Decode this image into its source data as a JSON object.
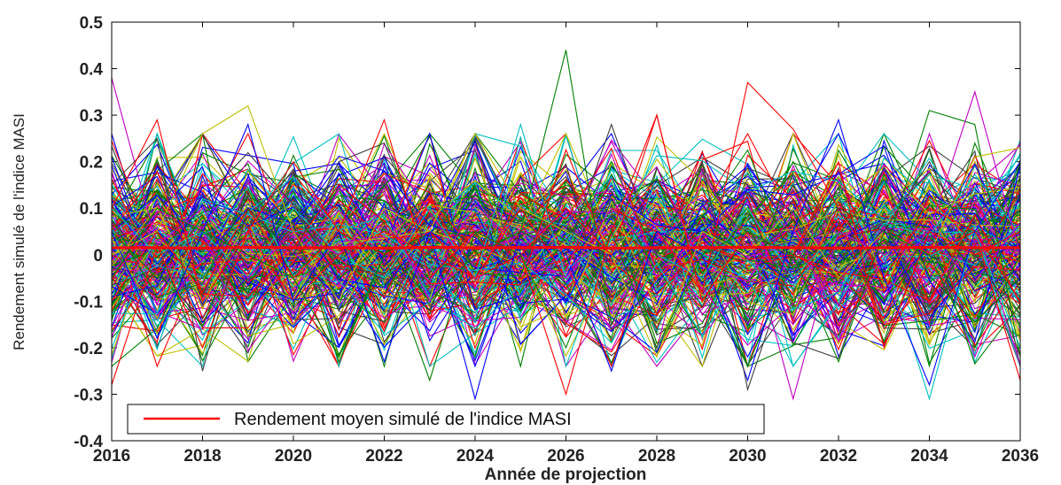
{
  "chart_data": {
    "type": "line",
    "xlabel": "Année de projection",
    "ylabel": "Rendement simulé de l'indice MASI",
    "xlim": [
      2016,
      2036
    ],
    "ylim": [
      -0.4,
      0.5
    ],
    "x_ticks": [
      "2016",
      "2018",
      "2020",
      "2022",
      "2024",
      "2026",
      "2028",
      "2030",
      "2032",
      "2034",
      "2036"
    ],
    "y_ticks": [
      "0.5",
      "0.4",
      "0.3",
      "0.2",
      "0.1",
      "0",
      "-0.1",
      "-0.2",
      "-0.3",
      "-0.4"
    ],
    "grid": false,
    "legend_position": "bottom-left",
    "legend": [
      {
        "label": "Rendement moyen simulé de l'indice MASI",
        "color": "#ff0000"
      }
    ],
    "mean_series": {
      "x": [
        2016,
        2017,
        2018,
        2019,
        2020,
        2021,
        2022,
        2023,
        2024,
        2025,
        2026,
        2027,
        2028,
        2029,
        2030,
        2031,
        2032,
        2033,
        2034,
        2035,
        2036
      ],
      "values": [
        0.015,
        0.015,
        0.014,
        0.016,
        0.015,
        0.015,
        0.014,
        0.016,
        0.015,
        0.015,
        0.016,
        0.014,
        0.015,
        0.015,
        0.016,
        0.015,
        0.014,
        0.015,
        0.016,
        0.015,
        0.015
      ],
      "color": "#ff0000"
    },
    "simulated_series": {
      "count": 250,
      "x": [
        2016,
        2017,
        2018,
        2019,
        2020,
        2021,
        2022,
        2023,
        2024,
        2025,
        2026,
        2027,
        2028,
        2029,
        2030,
        2031,
        2032,
        2033,
        2034,
        2035,
        2036
      ],
      "colors": [
        "#0000ff",
        "#008000",
        "#ff0000",
        "#00bfbf",
        "#bf00bf",
        "#bfbf00",
        "#404040"
      ],
      "mean": 0.015,
      "std": 0.1,
      "extremes": [
        {
          "color": "#008000",
          "values": [
            0.05,
            -0.05,
            0.08,
            -0.02,
            0.1,
            -0.05,
            0.02,
            -0.1,
            0.0,
            0.05,
            0.44,
            -0.15,
            0.05,
            0.0,
            0.1,
            -0.1,
            0.05,
            0.0,
            0.31,
            0.28,
            -0.22
          ]
        },
        {
          "color": "#ff0000",
          "values": [
            -0.1,
            0.05,
            -0.08,
            0.1,
            -0.05,
            0.05,
            0.0,
            0.05,
            -0.05,
            0.1,
            -0.05,
            0.1,
            0.05,
            -0.08,
            0.37,
            0.27,
            0.1,
            -0.05,
            0.1,
            0.05,
            -0.27
          ]
        },
        {
          "color": "#00bfbf",
          "values": [
            0.1,
            0.0,
            0.05,
            -0.05,
            0.1,
            0.0,
            -0.05,
            0.1,
            -0.05,
            0.28,
            -0.05,
            0.1,
            0.0,
            -0.05,
            0.1,
            -0.05,
            0.05,
            0.0,
            -0.31,
            0.05,
            -0.2
          ]
        },
        {
          "color": "#bf00bf",
          "values": [
            0.38,
            0.02,
            0.1,
            -0.05,
            0.05,
            0.0,
            0.1,
            -0.1,
            0.05,
            0.0,
            -0.05,
            0.1,
            0.0,
            -0.1,
            0.05,
            -0.31,
            0.05,
            0.0,
            0.05,
            0.35,
            0.0
          ]
        },
        {
          "color": "#ff0000",
          "values": [
            -0.28,
            0.02,
            -0.2,
            0.05,
            -0.1,
            0.0,
            0.05,
            0.0,
            -0.05,
            0.0,
            -0.3,
            0.05,
            0.3,
            -0.1,
            0.05,
            0.0,
            -0.05,
            0.05,
            0.0,
            0.05,
            -0.1
          ]
        },
        {
          "color": "#0000ff",
          "values": [
            0.05,
            -0.18,
            0.05,
            0.28,
            -0.1,
            0.05,
            -0.23,
            0.05,
            -0.31,
            0.05,
            0.0,
            -0.25,
            0.05,
            0.0,
            -0.27,
            0.05,
            0.29,
            -0.05,
            -0.28,
            0.05,
            0.2
          ]
        },
        {
          "color": "#bfbf00",
          "values": [
            0.0,
            0.05,
            0.26,
            0.32,
            0.05,
            -0.1,
            0.1,
            0.05,
            0.26,
            0.1,
            0.05,
            0.0,
            -0.22,
            0.05,
            0.0,
            0.1,
            -0.05,
            0.05,
            0.0,
            0.21,
            0.23
          ]
        },
        {
          "color": "#404040",
          "values": [
            0.15,
            0.25,
            -0.25,
            0.1,
            0.0,
            0.2,
            0.24,
            0.0,
            -0.1,
            0.05,
            0.0,
            0.28,
            0.0,
            0.2,
            -0.29,
            0.0,
            0.1,
            0.05,
            0.2,
            0.0,
            -0.15
          ]
        },
        {
          "color": "#ff0000",
          "values": [
            0.1,
            0.29,
            -0.1,
            0.05,
            0.2,
            0.05,
            0.29,
            -0.05,
            0.05,
            0.0,
            0.1,
            0.0,
            0.3,
            -0.1,
            0.05,
            0.0,
            0.2,
            -0.2,
            0.05,
            0.0,
            0.05
          ]
        },
        {
          "color": "#008000",
          "values": [
            -0.05,
            0.1,
            0.05,
            0.0,
            -0.05,
            -0.22,
            0.0,
            -0.27,
            0.05,
            0.0,
            -0.2,
            0.05,
            -0.2,
            0.0,
            0.05,
            0.0,
            -0.23,
            0.05,
            0.0,
            -0.2,
            0.0
          ]
        }
      ]
    }
  }
}
